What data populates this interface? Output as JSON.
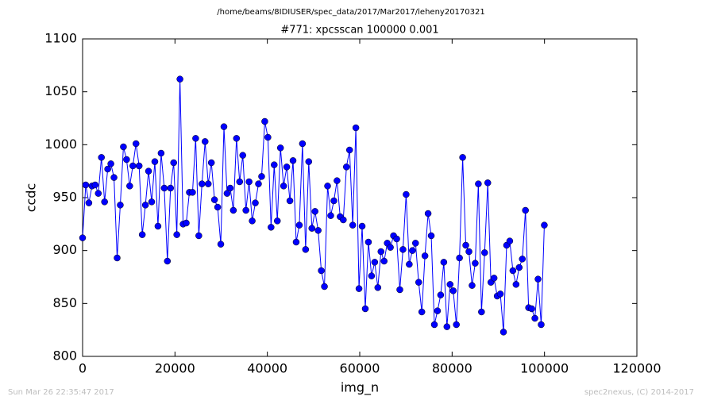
{
  "chart_data": {
    "type": "line",
    "suptitle": "/home/beams/8IDIUSER/spec_data/2017/Mar2017/leheny20170321",
    "title": "#771: xpcsscan 100000 0.001",
    "x_label": "img_n",
    "y_label": "ccdc",
    "footer_left": "Sun Mar 26 22:35:47 2017",
    "footer_right": "spec2nexus, (C) 2014-2017",
    "color": "#0000ff",
    "marker": "circle",
    "xlim": [
      0,
      120000
    ],
    "xticks": [
      0,
      20000,
      40000,
      60000,
      80000,
      100000,
      120000
    ],
    "ylim": [
      800,
      1100
    ],
    "yticks": [
      800,
      850,
      900,
      950,
      1000,
      1050,
      1100
    ],
    "x": [
      0,
      680,
      1360,
      2040,
      2720,
      3400,
      4080,
      4760,
      5440,
      6120,
      6800,
      7480,
      8160,
      8840,
      9520,
      10200,
      10880,
      11560,
      12240,
      12920,
      13600,
      14280,
      14960,
      15640,
      16320,
      17000,
      17680,
      18360,
      19040,
      19720,
      20400,
      21080,
      21760,
      22440,
      23120,
      23800,
      24480,
      25160,
      25840,
      26520,
      27200,
      27880,
      28560,
      29240,
      29920,
      30600,
      31280,
      31960,
      32640,
      33320,
      34000,
      34680,
      35360,
      36040,
      36720,
      37400,
      38080,
      38760,
      39440,
      40120,
      40800,
      41480,
      42160,
      42840,
      43520,
      44200,
      44880,
      45560,
      46240,
      46920,
      47600,
      48280,
      48960,
      49640,
      50320,
      51000,
      51680,
      52360,
      53040,
      53720,
      54400,
      55080,
      55760,
      56440,
      57120,
      57800,
      58480,
      59160,
      59840,
      60520,
      61200,
      61880,
      62560,
      63240,
      63920,
      64600,
      65280,
      65960,
      66640,
      67320,
      68000,
      68680,
      69360,
      70040,
      70720,
      71400,
      72080,
      72760,
      73440,
      74120,
      74800,
      75480,
      76160,
      76840,
      77520,
      78200,
      78880,
      79560,
      80240,
      80920,
      81600,
      82280,
      82960,
      83640,
      84320,
      85000,
      85680,
      86360,
      87040,
      87720,
      88400,
      89080,
      89760,
      90440,
      91120,
      91800,
      92480,
      93160,
      93840,
      94520,
      95200,
      95880,
      96560,
      97240,
      97920,
      98600,
      99280,
      99960
    ],
    "values": [
      912,
      962,
      945,
      961,
      962,
      954,
      988,
      946,
      977,
      982,
      969,
      893,
      943,
      998,
      986,
      961,
      980,
      1001,
      980,
      915,
      943,
      975,
      946,
      984,
      923,
      992,
      959,
      890,
      959,
      983,
      915,
      1062,
      925,
      926,
      955,
      955,
      1006,
      914,
      963,
      1003,
      963,
      983,
      948,
      941,
      906,
      1017,
      954,
      959,
      938,
      1006,
      965,
      990,
      938,
      965,
      928,
      945,
      963,
      970,
      1022,
      1007,
      922,
      981,
      928,
      997,
      961,
      979,
      947,
      985,
      908,
      924,
      1001,
      901,
      984,
      921,
      937,
      919,
      881,
      866,
      961,
      933,
      947,
      966,
      932,
      929,
      979,
      995,
      924,
      1016,
      864,
      923,
      845,
      908,
      876,
      889,
      865,
      899,
      890,
      907,
      903,
      914,
      911,
      863,
      901,
      953,
      887,
      900,
      907,
      870,
      842,
      895,
      935,
      914,
      830,
      843,
      858,
      889,
      828,
      868,
      862,
      830,
      893,
      988,
      905,
      899,
      867,
      888,
      963,
      842,
      898,
      964,
      870,
      874,
      857,
      859,
      823,
      905,
      909,
      881,
      868,
      884,
      892,
      938,
      846,
      845,
      836,
      873,
      830,
      924
    ]
  }
}
